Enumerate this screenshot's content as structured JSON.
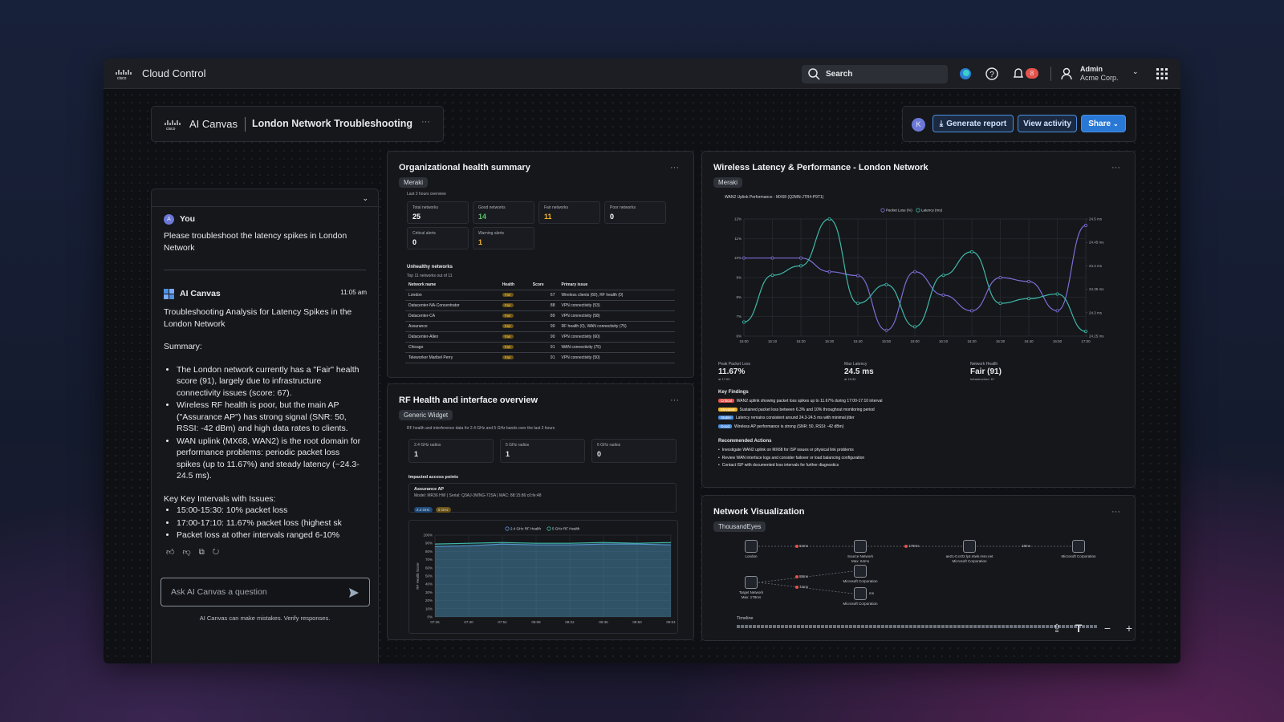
{
  "header": {
    "brand": "Cloud Control",
    "search": "Search",
    "notifications": "8",
    "user": "Admin",
    "org": "Acme Corp."
  },
  "canvas": {
    "label": "AI Canvas",
    "title": "London Network Troubleshooting",
    "avatar": "K",
    "actions": [
      "Generate report",
      "View activity",
      "Share"
    ]
  },
  "chat": {
    "user_avatar": "A",
    "user_name": "You",
    "user_message": "Please troubleshoot the latency spikes in London Network",
    "ai_name": "AI Canvas",
    "time": "11:05 am",
    "ai_heading": "Troubleshooting Analysis for Latency Spikes in the London Network",
    "summary_label": "Summary:",
    "summary_bullets": [
      "The London network currently has a \"Fair\" health score (91), largely due to infrastructure connectivity issues (score: 67).",
      "Wireless RF health is poor, but the main AP (\"Assurance AP\") has strong signal (SNR: 50, RSSI: -42 dBm) and high data rates to clients.",
      "WAN uplink (MX68, WAN2) is the root domain for performance problems: periodic packet loss spikes (up to 11.67%) and steady latency (~24.3-24.5 ms)."
    ],
    "intervals_label": "Key Key Intervals with Issues:",
    "interval_bullets": [
      "15:00-15:30: 10% packet loss",
      "17:00-17:10: 11.67% packet loss (highest sk",
      "Packet loss at other intervals ranged 6-10%"
    ],
    "input_placeholder": "Ask AI Canvas a question",
    "disclaimer": "AI Canvas can make mistakes. Verify responses."
  },
  "org_health": {
    "title": "Organizational health summary",
    "tag": "Meraki",
    "subtitle": "Last 2 hours overview",
    "stats": [
      {
        "label": "Total networks",
        "value": 25,
        "color": "#ffffff"
      },
      {
        "label": "Good networks",
        "value": 14,
        "color": "#5cc46a"
      },
      {
        "label": "Fair networks",
        "value": 11,
        "color": "#f0b429"
      },
      {
        "label": "Poor networks",
        "value": 0,
        "color": "#ffffff"
      },
      {
        "label": "Critical alerts",
        "value": 0,
        "color": "#ffffff"
      },
      {
        "label": "Warning alerts",
        "value": 1,
        "color": "#f0b429"
      }
    ],
    "unhealthy_title": "Unhealthy networks",
    "unhealthy_subtitle": "Top 11 networks out of 11",
    "columns": [
      "Network name",
      "Health",
      "Score",
      "Primary issue"
    ],
    "rows": [
      [
        "London",
        "Fair",
        67,
        "Wireless clients (60), RF health (0)"
      ],
      [
        "Datacenter-NA-Concentrator",
        "Fair",
        88,
        "VPN connectivity (53)"
      ],
      [
        "Datacenter-CA",
        "Fair",
        89,
        "VPN connectivity (58)"
      ],
      [
        "Assurance",
        "Fair",
        90,
        "RF health (0), WAN connectivity (75)"
      ],
      [
        "Datacenter-Allen",
        "Fair",
        90,
        "VPN connectivity (60)"
      ],
      [
        "Chicago",
        "Fair",
        91,
        "WAN connectivity (75)"
      ],
      [
        "Teleworker Maribel Perry",
        "Fair",
        91,
        "VPN connectivity (50)"
      ]
    ]
  },
  "rf": {
    "title": "RF Health and interface overview",
    "tag": "Generic Widget",
    "description": "RF health and interference data for 2.4 GHz and 5 GHz bands over the last 2 hours",
    "stats": [
      {
        "label": "2.4 GHz radios",
        "value": 1
      },
      {
        "label": "5 GHz radios",
        "value": 1
      },
      {
        "label": "6 GHz radios",
        "value": 0
      }
    ],
    "impacted_label": "Impacted access points",
    "ap_name": "Assurance AP",
    "ap_detail": "Model: MR36 HW | Serial: Q3AJ-3WNG-72SA | MAC: 88:15:86:c0:fe:48",
    "bands": [
      "2.4 GHz",
      "5 GHz"
    ],
    "chart": {
      "type": "area",
      "ylabel": "RF Health Score",
      "categories": [
        "07:26",
        "07:40",
        "07:54",
        "08:08",
        "08:22",
        "08:36",
        "08:50",
        "09:04"
      ],
      "series": [
        {
          "name": "2.4 GHz RF Health",
          "color": "#5b8fd6",
          "values": [
            86,
            87,
            89,
            88,
            88,
            89,
            89,
            88
          ]
        },
        {
          "name": "5 GHz RF Health",
          "color": "#3fb8a8",
          "values": [
            89,
            90,
            91,
            90,
            90,
            91,
            90,
            91
          ]
        }
      ],
      "ylim": [
        0,
        100
      ],
      "yticks": [
        {
          "value": 0,
          "label": "0%"
        },
        {
          "value": 10,
          "label": "10%"
        },
        {
          "value": 20,
          "label": "20%"
        },
        {
          "value": 30,
          "label": "30%"
        },
        {
          "value": 40,
          "label": "40%"
        },
        {
          "value": 50,
          "label": "50%"
        },
        {
          "value": 60,
          "label": "60%"
        },
        {
          "value": 70,
          "label": "70%"
        },
        {
          "value": 80,
          "label": "80%"
        },
        {
          "value": 90,
          "label": "90%"
        },
        {
          "value": 100,
          "label": "100%"
        }
      ],
      "grid": true
    }
  },
  "wireless": {
    "title": "Wireless Latency & Performance - London Network",
    "tag": "Meraki",
    "chart": {
      "type": "line",
      "title": "WAN2 Uplink Performance - MX68 (Q2MN-JTR4-P9T1)",
      "categories": [
        "15:00",
        "15:10",
        "15:20",
        "15:30",
        "15:40",
        "15:50",
        "16:00",
        "16:10",
        "16:20",
        "16:30",
        "16:40",
        "16:50",
        "17:00"
      ],
      "series": [
        {
          "name": "Packet Loss (%)",
          "color": "#7b6fd6",
          "values": [
            10,
            10,
            10,
            9.3,
            9.1,
            6.3,
            9.3,
            8.1,
            7.3,
            9,
            8.8,
            7.3,
            11.67
          ]
        },
        {
          "name": "Latency (ms)",
          "color": "#3fb8a8",
          "axis": "y2",
          "values": [
            24.28,
            24.38,
            24.4,
            24.5,
            24.32,
            24.36,
            24.27,
            24.38,
            24.43,
            24.32,
            24.33,
            24.34,
            24.26
          ]
        }
      ],
      "ylim": [
        6,
        12
      ],
      "yticks": [
        {
          "value": 6,
          "label": "6%"
        },
        {
          "value": 7,
          "label": "7%"
        },
        {
          "value": 8,
          "label": "8%"
        },
        {
          "value": 9,
          "label": "9%"
        },
        {
          "value": 10,
          "label": "10%"
        },
        {
          "value": 11,
          "label": "11%"
        },
        {
          "value": 12,
          "label": "12%"
        }
      ],
      "y2lim": [
        24.25,
        24.5
      ],
      "y2ticks": [
        {
          "value": 24.25,
          "label": "24.25 ms"
        },
        {
          "value": 24.3,
          "label": "24.3 ms"
        },
        {
          "value": 24.35,
          "label": "24.35 ms"
        },
        {
          "value": 24.4,
          "label": "24.4 ms"
        },
        {
          "value": 24.45,
          "label": "24.45 ms"
        },
        {
          "value": 24.5,
          "label": "24.5 ms"
        }
      ],
      "grid": true
    },
    "stats": [
      {
        "label": "Peak Packet Loss",
        "value": "11.67%",
        "note": "at 17:00"
      },
      {
        "label": "Max Latency",
        "value": "24.5 ms",
        "note": "at 15:30"
      },
      {
        "label": "Network Health",
        "value": "Fair (91)",
        "note": "Infrastructure: 67"
      }
    ],
    "findings_title": "Key Findings",
    "findings": [
      {
        "tag": "Critical",
        "color": "#e5534b",
        "text": "WAN2 uplink showing packet loss spikes up to 11.67% during 17:00-17:10 interval"
      },
      {
        "tag": "Elevated",
        "color": "#f0b429",
        "text": "Sustained packet loss between 6.3% and 10% throughout monitoring period"
      },
      {
        "tag": "Stable",
        "color": "#4b8fe0",
        "text": "Latency remains consistent around 24.3-24.5 ms with minimal jitter"
      },
      {
        "tag": "Good",
        "color": "#4b8fe0",
        "text": "Wireless AP performance is strong (SNR: 50, RSSI: -42 dBm)"
      }
    ],
    "actions_title": "Recommended Actions",
    "actions": [
      "Investigate WAN2 uplink on MX68 for ISP issues or physical link problems",
      "Review WAN interface logs and consider failover or load balancing configuration",
      "Contact ISP with documented loss intervals for further diagnostics"
    ]
  },
  "network": {
    "title": "Network Visualization",
    "tag": "ThousandEyes",
    "nodes": [
      {
        "label": "London"
      },
      {
        "label": "Source Network",
        "sublabel": "Max: 64ms"
      },
      {
        "label": "ae21-0.cr02.ly4.ntwk.msn.net",
        "sublabel": "Microsoft Corporation"
      },
      {
        "label": "Microsoft Corporation"
      },
      {
        "label": "Target Network",
        "sublabel": "Max: 178ms"
      },
      {
        "label": "Microsoft Corporation"
      },
      {
        "label": "Microsoft Corporation"
      }
    ],
    "edges": [
      "64ms",
      "178ms",
      "18ms",
      "88ms",
      "74ms",
      "ms"
    ],
    "timeline": "Timeline"
  }
}
